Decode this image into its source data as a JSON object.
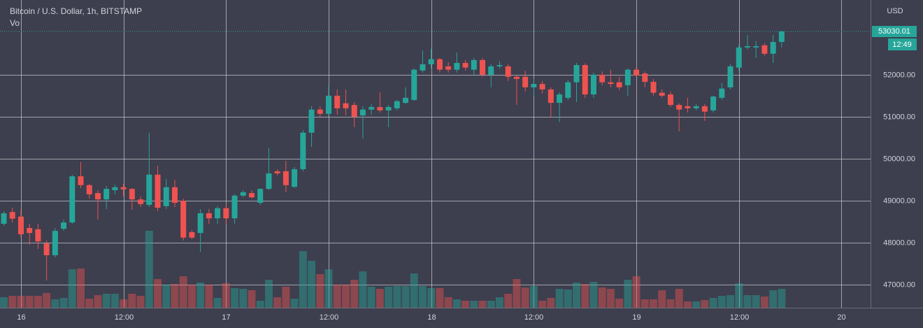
{
  "chart_data": {
    "type": "candlestick",
    "title": "Bitcoin / U.S. Dollar, 1h, BITSTAMP",
    "volume_label": "Vo",
    "currency": "USD",
    "last_price": {
      "value": 53030.01,
      "label": "53030.01"
    },
    "countdown": "12:49",
    "up_color": "#26a69a",
    "down_color": "#ef5350",
    "grid": true,
    "x": [
      -2,
      -1,
      0,
      1,
      2,
      3,
      4,
      5,
      6,
      7,
      8,
      9,
      10,
      11,
      12,
      13,
      14,
      15,
      16,
      17,
      18,
      19,
      20,
      21,
      22,
      23,
      24,
      25,
      26,
      27,
      28,
      29,
      30,
      31,
      32,
      33,
      34,
      35,
      36,
      37,
      38,
      39,
      40,
      41,
      42,
      43,
      44,
      45,
      46,
      47,
      48,
      49,
      50,
      51,
      52,
      53,
      54,
      55,
      56,
      57,
      58,
      59,
      60,
      61,
      62,
      63,
      64,
      65,
      66,
      67,
      68,
      69,
      70,
      71,
      72,
      73,
      74,
      75,
      76,
      77,
      78,
      79,
      80,
      81,
      82,
      83,
      84,
      85,
      86,
      87,
      88,
      89
    ],
    "open": [
      48450,
      48730,
      48620,
      48350,
      48320,
      47980,
      47700,
      48330,
      48480,
      49580,
      49370,
      49180,
      49030,
      49250,
      49320,
      49280,
      49030,
      48900,
      49620,
      48870,
      49320,
      49000,
      48250,
      48230,
      48700,
      48580,
      48820,
      48580,
      49120,
      49180,
      48950,
      49280,
      49700,
      49700,
      49330,
      49750,
      50620,
      51170,
      51070,
      51500,
      51320,
      51280,
      51030,
      51170,
      51230,
      51150,
      51200,
      51330,
      51400,
      52100,
      52250,
      52370,
      52200,
      52120,
      52280,
      52120,
      52350,
      52000,
      52200,
      52200,
      51950,
      51950,
      51700,
      51780,
      51650,
      51330,
      51450,
      51820,
      52230,
      51530,
      52000,
      51820,
      51820,
      51750,
      52120,
      52030,
      51830,
      51570,
      51530,
      51280,
      51250,
      51200,
      51250,
      51150,
      51450,
      51700,
      52170,
      52650,
      52650,
      52700,
      52500,
      52780
    ],
    "high": [
      48750,
      48830,
      48780,
      48450,
      48450,
      48050,
      48350,
      48550,
      49620,
      49920,
      49400,
      49250,
      49350,
      49380,
      49400,
      49300,
      49100,
      50620,
      49830,
      49520,
      49500,
      49050,
      48300,
      48800,
      48800,
      48870,
      48900,
      49150,
      49250,
      49250,
      49300,
      50250,
      49750,
      49950,
      49800,
      50680,
      51250,
      51250,
      51730,
      51650,
      51650,
      51350,
      51250,
      51300,
      51580,
      51280,
      51400,
      51700,
      52150,
      52580,
      52620,
      52400,
      52300,
      52530,
      52350,
      52400,
      52400,
      52250,
      52320,
      52250,
      52000,
      52100,
      51900,
      51850,
      51700,
      51580,
      51870,
      52280,
      52270,
      52050,
      52080,
      52120,
      51950,
      52150,
      52180,
      52080,
      51900,
      51650,
      51600,
      51320,
      51450,
      51300,
      51300,
      51500,
      51800,
      52250,
      52700,
      52950,
      52800,
      52750,
      52950,
      53050
    ],
    "low": [
      48400,
      48480,
      48120,
      47950,
      47850,
      47100,
      47650,
      48280,
      48450,
      49300,
      49050,
      48550,
      48800,
      49150,
      49100,
      48780,
      48850,
      48850,
      48750,
      48800,
      48850,
      48050,
      48080,
      47780,
      48450,
      48450,
      48450,
      48450,
      49080,
      49050,
      48900,
      49250,
      49600,
      49200,
      49300,
      49700,
      50280,
      51000,
      51000,
      51050,
      51030,
      50750,
      50480,
      51050,
      51100,
      50750,
      51150,
      51300,
      51380,
      52050,
      52150,
      52050,
      52050,
      52050,
      52100,
      52000,
      51950,
      51700,
      52150,
      51850,
      51280,
      51600,
      51500,
      51550,
      51000,
      50870,
      51400,
      51350,
      51450,
      51450,
      51750,
      51700,
      51630,
      51500,
      51950,
      51700,
      51500,
      51450,
      51230,
      50650,
      51100,
      51150,
      50900,
      51100,
      51400,
      51650,
      52100,
      52600,
      52400,
      52450,
      52280,
      52650
    ],
    "close": [
      48700,
      48570,
      48200,
      48230,
      48030,
      47700,
      48280,
      48480,
      49580,
      49370,
      49150,
      49030,
      49280,
      49320,
      49270,
      49030,
      48920,
      49620,
      48830,
      49320,
      48950,
      48120,
      48120,
      48700,
      48580,
      48820,
      48580,
      49120,
      49200,
      49080,
      49280,
      49650,
      49650,
      49370,
      49750,
      50620,
      51170,
      51070,
      51500,
      51200,
      51200,
      51000,
      51170,
      51230,
      51150,
      51230,
      51370,
      51450,
      52120,
      52250,
      52370,
      52120,
      52120,
      52280,
      52170,
      52350,
      52000,
      52200,
      52230,
      51950,
      51900,
      51700,
      51780,
      51650,
      51330,
      51530,
      51820,
      52230,
      51530,
      52000,
      51820,
      51780,
      51700,
      52120,
      51980,
      51830,
      51570,
      51500,
      51280,
      51170,
      51200,
      51250,
      51120,
      51480,
      51670,
      52200,
      52650,
      52680,
      52680,
      52500,
      52780,
      53030
    ],
    "volume": [
      15,
      17,
      17,
      17,
      17,
      21,
      12,
      14,
      55,
      56,
      13,
      18,
      20,
      20,
      12,
      20,
      17,
      110,
      41,
      33,
      34,
      45,
      33,
      36,
      33,
      14,
      35,
      28,
      27,
      25,
      10,
      40,
      15,
      30,
      13,
      81,
      67,
      48,
      55,
      33,
      33,
      40,
      52,
      30,
      27,
      30,
      31,
      31,
      49,
      31,
      28,
      28,
      15,
      12,
      10,
      10,
      10,
      10,
      15,
      20,
      41,
      29,
      31,
      10,
      14,
      27,
      26,
      36,
      34,
      37,
      29,
      27,
      13,
      40,
      45,
      12,
      12,
      25,
      12,
      27,
      9,
      9,
      11,
      14,
      17,
      18,
      35,
      18,
      18,
      16,
      25,
      27
    ],
    "volume_lim": [
      0,
      440
    ],
    "xlim": [
      -2.45,
      99.4
    ],
    "xticks": [
      {
        "value": 0,
        "label": "16"
      },
      {
        "value": 12,
        "label": "12:00"
      },
      {
        "value": 24,
        "label": "17"
      },
      {
        "value": 36,
        "label": "12:00"
      },
      {
        "value": 48,
        "label": "18"
      },
      {
        "value": 60,
        "label": "12:00"
      },
      {
        "value": 72,
        "label": "19"
      },
      {
        "value": 84,
        "label": "12:00"
      },
      {
        "value": 96,
        "label": "20"
      }
    ],
    "ylim": [
      46450,
      53780
    ],
    "yticks": [
      {
        "value": 47000,
        "label": "47000.00"
      },
      {
        "value": 48000,
        "label": "48000.00"
      },
      {
        "value": 49000,
        "label": "49000.00"
      },
      {
        "value": 50000,
        "label": "50000.00"
      },
      {
        "value": 51000,
        "label": "51000.00"
      },
      {
        "value": 52000,
        "label": "52000.00"
      }
    ]
  }
}
